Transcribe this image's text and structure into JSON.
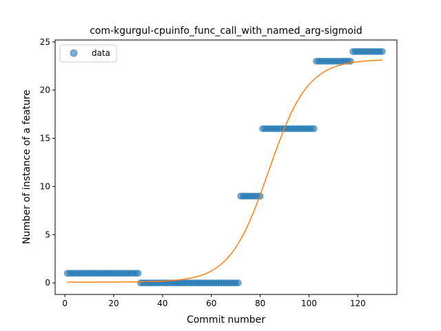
{
  "chart_data": {
    "type": "scatter",
    "title": "com-kgurgul-cpuinfo_func_call_with_named_arg-sigmoid",
    "xlabel": "Commit number",
    "ylabel": "Number of instance of a feature",
    "xlim": [
      -4,
      136
    ],
    "ylim": [
      -1.2,
      25.2
    ],
    "xticks": [
      0,
      20,
      40,
      60,
      80,
      100,
      120
    ],
    "yticks": [
      0,
      5,
      10,
      15,
      20,
      25
    ],
    "grid": false,
    "legend_position": "top-left",
    "colors": {
      "points": "#1f77b4",
      "fit": "#ff7f0e"
    },
    "series": [
      {
        "name": "data",
        "kind": "scatter",
        "segments": [
          {
            "x_from": 1,
            "x_to": 30,
            "y": 1
          },
          {
            "x_from": 31,
            "x_to": 71,
            "y": 0
          },
          {
            "x_from": 72,
            "x_to": 80,
            "y": 9
          },
          {
            "x_from": 81,
            "x_to": 102,
            "y": 16
          },
          {
            "x_from": 103,
            "x_to": 117,
            "y": 23
          },
          {
            "x_from": 118,
            "x_to": 130,
            "y": 24
          }
        ]
      },
      {
        "kind": "line",
        "function": "sigmoid",
        "params": {
          "L": 23.1,
          "x0": 83.5,
          "k": 0.125,
          "b": 0.08
        },
        "x_range": [
          1,
          130
        ]
      }
    ]
  }
}
